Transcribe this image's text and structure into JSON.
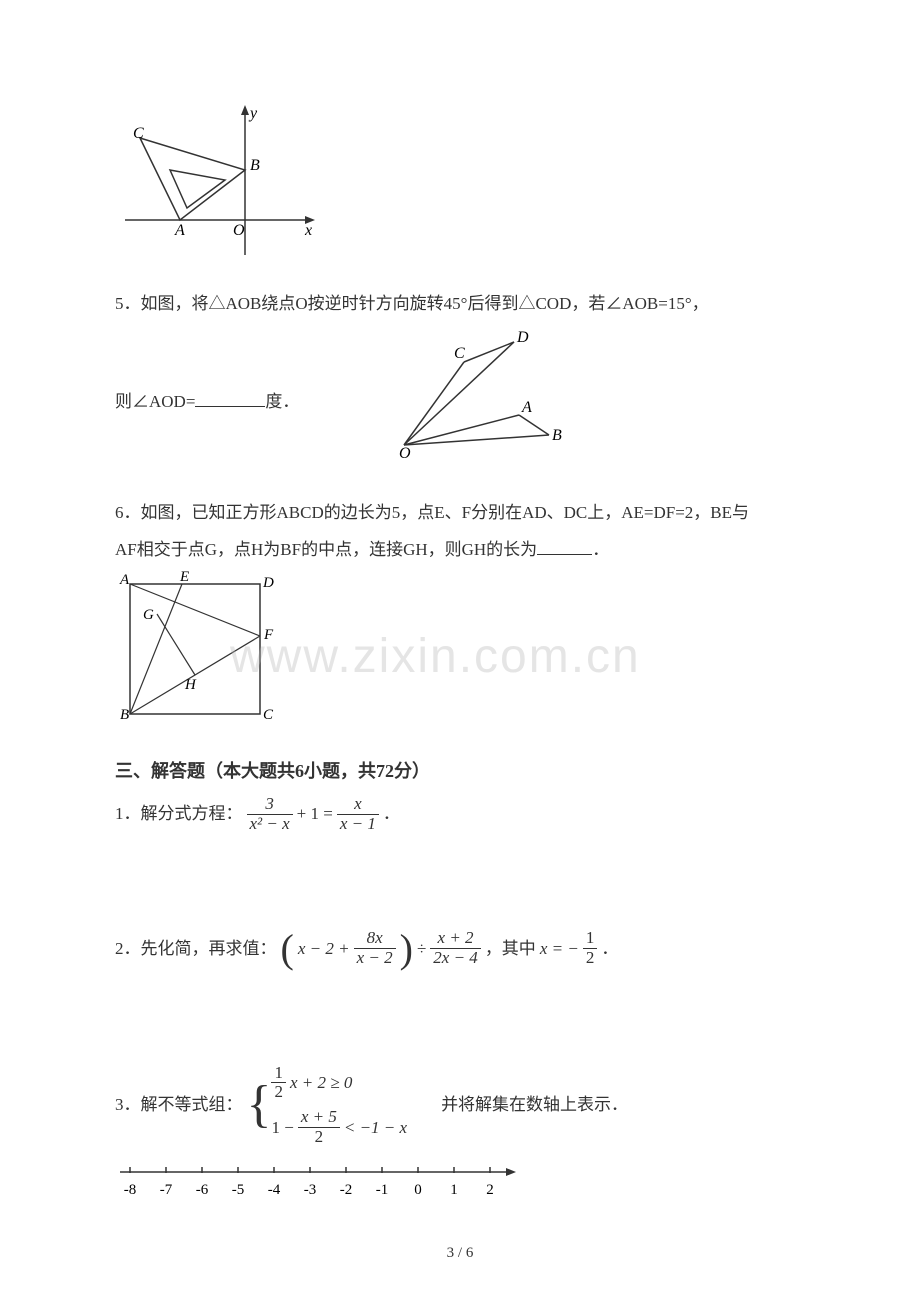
{
  "figure_top": {
    "labels": {
      "y": "y",
      "x": "x",
      "O": "O",
      "A": "A",
      "B": "B",
      "C": "C"
    },
    "colors": {
      "stroke": "#333333"
    }
  },
  "problem5": {
    "text_line1": "5．如图，将△AOB绕点O按逆时针方向旋转45°后得到△COD，若∠AOB=15°，",
    "text_line2_a": "则∠AOD=",
    "text_line2_b": "度．",
    "figure": {
      "labels": {
        "O": "O",
        "A": "A",
        "B": "B",
        "C": "C",
        "D": "D"
      }
    }
  },
  "problem6": {
    "text_line1": "6．如图，已知正方形ABCD的边长为5，点E、F分别在AD、DC上，AE=DF=2，BE与",
    "text_line2": "AF相交于点G，点H为BF的中点，连接GH，则GH的长为",
    "text_line2_end": "．",
    "figure": {
      "labels": {
        "A": "A",
        "B": "B",
        "C": "C",
        "D": "D",
        "E": "E",
        "F": "F",
        "G": "G",
        "H": "H"
      }
    }
  },
  "watermark": "www.zixin.com.cn",
  "section3": {
    "header": "三、解答题（本大题共6小题，共72分）",
    "q1_label": "1．解分式方程：",
    "q1_period": "．",
    "q1_eq": {
      "f1_num": "3",
      "f1_den": "x² − x",
      "plus1": "+ 1 =",
      "f2_num": "x",
      "f2_den": "x − 1"
    },
    "q2_label": "2．先化简，再求值：",
    "q2_mid": "，其中",
    "q2_period": "．",
    "q2_eq": {
      "term1": "x − 2 +",
      "f1_num": "8x",
      "f1_den": "x − 2",
      "div": "÷",
      "f2_num": "x + 2",
      "f2_den": "2x − 4",
      "x_eq": "x = −",
      "half_num": "1",
      "half_den": "2"
    },
    "q3_label": "3．解不等式组：",
    "q3_tail": "并将解集在数轴上表示．",
    "q3_sys": {
      "line1_a_num": "1",
      "line1_a_den": "2",
      "line1_b": "x + 2 ≥ 0",
      "line2_a": "1 −",
      "line2_b_num": "x + 5",
      "line2_b_den": "2",
      "line2_c": "< −1 − x"
    }
  },
  "numberline": {
    "ticks": [
      "-8",
      "-7",
      "-6",
      "-5",
      "-4",
      "-3",
      "-2",
      "-1",
      "0",
      "1",
      "2"
    ],
    "tick_step": 36,
    "y": 12
  },
  "page_num": "3 / 6"
}
